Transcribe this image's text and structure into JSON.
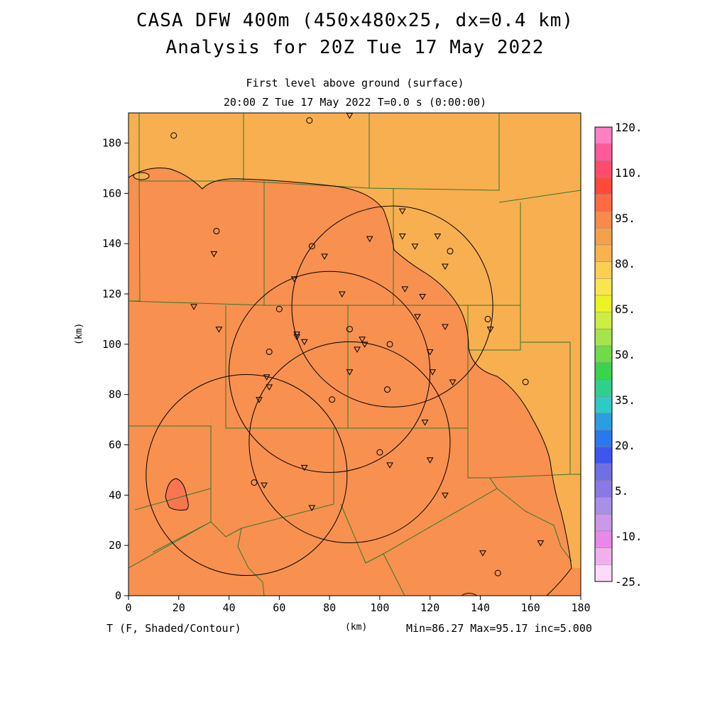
{
  "header": {
    "title_line1": "CASA DFW 400m (450x480x25, dx=0.4 km)",
    "title_line2": "Analysis for 20Z Tue 17 May 2022",
    "subtitle_line1": "First level above ground (surface)",
    "subtitle_line2": "20:00 Z Tue 17 May 2022   T=0.0 s (0:00:00)"
  },
  "axes": {
    "x_label": "(km)",
    "y_label": "(km)",
    "x_range": [
      0,
      180
    ],
    "y_range": [
      0,
      192
    ],
    "x_ticks": [
      "0",
      "20",
      "40",
      "60",
      "80",
      "100",
      "120",
      "140",
      "160",
      "180"
    ],
    "y_ticks": [
      "0",
      "20",
      "40",
      "60",
      "80",
      "100",
      "120",
      "140",
      "160",
      "180"
    ]
  },
  "footer": {
    "variable": "T (F, Shaded/Contour)",
    "stats": "Min=86.27 Max=95.17 inc=5.000"
  },
  "colorbar": {
    "labels": [
      "120.",
      "110.",
      "95.",
      "80.",
      "65.",
      "50.",
      "35.",
      "20.",
      "5.",
      "-10.",
      "-25."
    ],
    "colors_top_to_bottom": [
      "#ff80c0",
      "#ff5a98",
      "#ff4c6c",
      "#ff4a3a",
      "#fe6a42",
      "#f88a4c",
      "#f5a04a",
      "#f8b34e",
      "#fbcf52",
      "#f9e64c",
      "#ecf324",
      "#cbee40",
      "#a6e44c",
      "#70da48",
      "#3ad44c",
      "#30d08c",
      "#2ecac8",
      "#2a9ee0",
      "#2a78ee",
      "#3e56ee",
      "#7070e4",
      "#8a78e6",
      "#a890e6",
      "#cc98e8",
      "#e888e8",
      "#f0b0ec",
      "#ffd8fa"
    ]
  },
  "legend_fill_colors": {
    "t80_85": "#f8af4f",
    "t85_90": "#f89050",
    "t90_95": "#f8764e",
    "county_lines": "#2e7a2e"
  },
  "radars": [
    {
      "center_km": [
        80,
        89
      ],
      "radius_km": 40
    },
    {
      "center_km": [
        105,
        115
      ],
      "radius_km": 40
    },
    {
      "center_km": [
        88,
        61
      ],
      "radius_km": 40
    },
    {
      "center_km": [
        47,
        48
      ],
      "radius_km": 40
    }
  ],
  "stations": {
    "circles": [
      [
        18,
        183
      ],
      [
        72,
        189
      ],
      [
        35,
        145
      ],
      [
        73,
        139
      ],
      [
        60,
        114
      ],
      [
        56,
        97
      ],
      [
        88,
        106
      ],
      [
        104,
        100
      ],
      [
        103,
        82
      ],
      [
        81,
        78
      ],
      [
        100,
        57
      ],
      [
        50,
        45
      ],
      [
        158,
        85
      ],
      [
        143,
        110
      ],
      [
        128,
        137
      ],
      [
        147,
        9
      ]
    ],
    "triangles": [
      [
        88,
        191
      ],
      [
        34,
        136
      ],
      [
        26,
        115
      ],
      [
        36,
        106
      ],
      [
        66,
        126
      ],
      [
        78,
        135
      ],
      [
        96,
        142
      ],
      [
        109,
        153
      ],
      [
        109,
        143
      ],
      [
        114,
        139
      ],
      [
        123,
        143
      ],
      [
        126,
        131
      ],
      [
        110,
        122
      ],
      [
        117,
        119
      ],
      [
        115,
        111
      ],
      [
        126,
        107
      ],
      [
        144,
        106
      ],
      [
        85,
        120
      ],
      [
        67,
        104
      ],
      [
        67,
        103
      ],
      [
        70,
        101
      ],
      [
        93,
        102
      ],
      [
        91,
        98
      ],
      [
        94,
        100
      ],
      [
        120,
        97
      ],
      [
        121,
        89
      ],
      [
        129,
        85
      ],
      [
        88,
        89
      ],
      [
        55,
        87
      ],
      [
        56,
        83
      ],
      [
        52,
        78
      ],
      [
        118,
        69
      ],
      [
        70,
        51
      ],
      [
        104,
        52
      ],
      [
        120,
        54
      ],
      [
        126,
        40
      ],
      [
        141,
        17
      ],
      [
        164,
        21
      ],
      [
        54,
        44
      ],
      [
        73,
        35
      ]
    ]
  }
}
